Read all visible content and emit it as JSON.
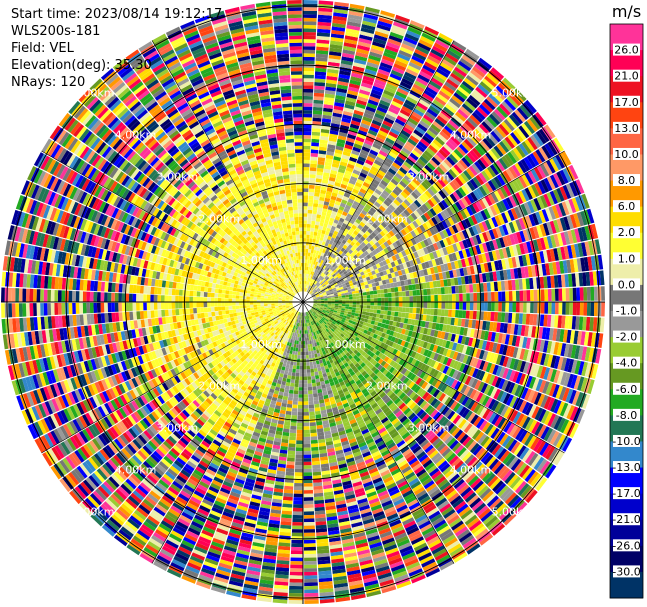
{
  "info": {
    "start_time": "Start time: 2023/08/14 19:12:17",
    "instrument": "WLS200s-181",
    "field": "Field: VEL",
    "elevation": "Elevation(deg): 35.30",
    "nrays": "NRays: 120"
  },
  "chart_data": {
    "type": "heatmap",
    "projection": "polar-ppi",
    "field": "VEL",
    "units": "m/s",
    "nrays": 120,
    "range_rings_km": [
      1.0,
      2.0,
      3.0,
      4.0,
      5.0
    ],
    "ring_labels": [
      "1.00km",
      "2.00km",
      "3.00km",
      "4.00km",
      "5.00km"
    ],
    "max_range_km": 5.1,
    "colorbar": {
      "unit_label": "m/s",
      "tick_labels": [
        "26.0",
        "21.0",
        "17.0",
        "13.0",
        "10.0",
        "8.0",
        "6.0",
        "2.0",
        "1.0",
        "0.0",
        "-1.0",
        "-2.0",
        "-4.0",
        "-6.0",
        "-8.0",
        "-10.0",
        "-13.0",
        "-17.0",
        "-21.0",
        "-26.0",
        "-30.0"
      ],
      "colors": [
        "#ff3399",
        "#ff0055",
        "#ee1122",
        "#ff4411",
        "#ff6644",
        "#ff9966",
        "#ff9900",
        "#ffdd00",
        "#ffff33",
        "#eeeeaa",
        "#777777",
        "#999999",
        "#99cc33",
        "#669922",
        "#22aa22",
        "#227755",
        "#3388cc",
        "#0000ff",
        "#0000cc",
        "#000099",
        "#000066",
        "#003366"
      ]
    },
    "near_field_summary": "Within ~2.5 km: yellow (1-2 m/s) toward west/north, grey (~0 m/s) toward north-east and south-west, olive/green (-2 to -6 m/s) toward east and south; beyond ~3 km mostly noise across all colours"
  }
}
